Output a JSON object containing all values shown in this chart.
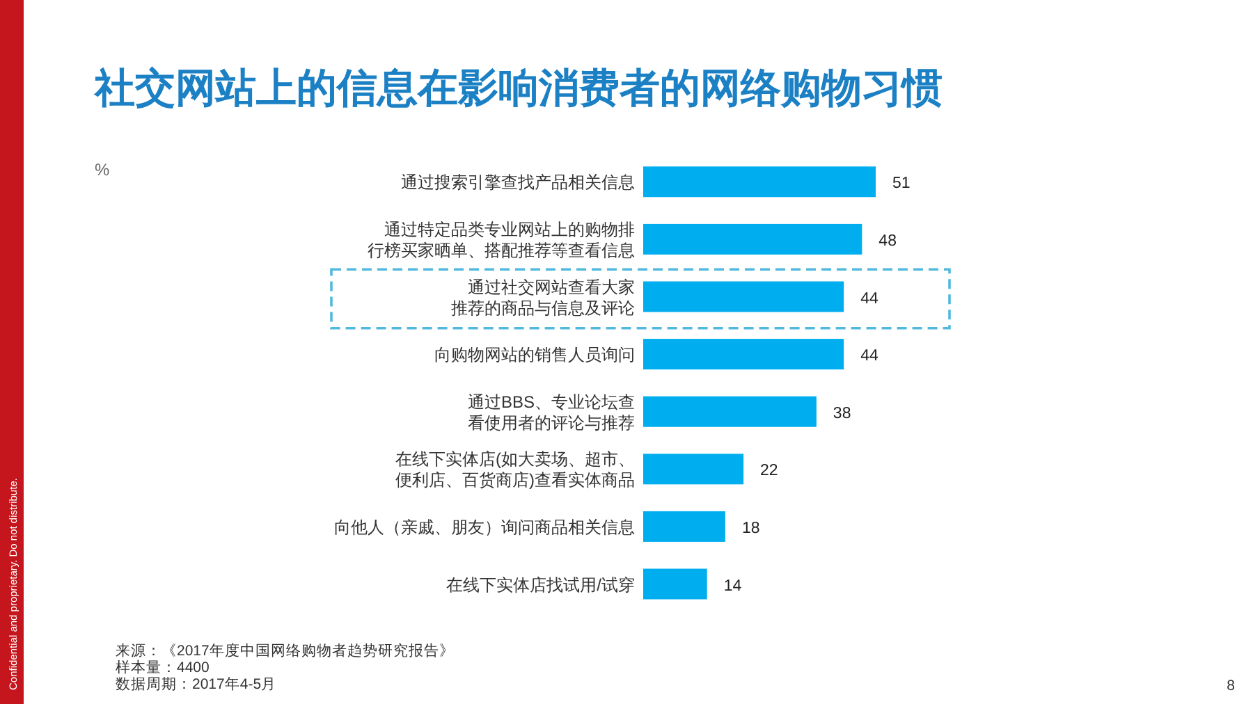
{
  "chart_data": {
    "type": "bar",
    "orientation": "horizontal",
    "title": "社交网站上的信息在影响消费者的网络购物习惯",
    "categories": [
      "通过搜索引擎查找产品相关信息",
      "通过特定品类专业网站上的购物排行榜买家晒单、搭配推荐等查看信息",
      "通过社交网站查看大家推荐的商品与信息及评论",
      "向购物网站的销售人员询问",
      "通过BBS、专业论坛查看使用者的评论与推荐",
      "在线下实体店(如大卖场、超市、便利店、百货商店)查看实体商品",
      "向他人（亲戚、朋友）询问商品相关信息",
      "在线下实体店找试用/试穿"
    ],
    "values": [
      51,
      48,
      44,
      44,
      38,
      22,
      18,
      14
    ],
    "color": "#00aeef",
    "data_labels": true,
    "annotations": [
      "%",
      "来源：《2017年度中国网络购物者趋势研究报告》",
      "样本量：4400",
      "数据周期：2017年4-5月",
      "Confidential and proprietary. Do not distribute.",
      "8"
    ]
  }
}
